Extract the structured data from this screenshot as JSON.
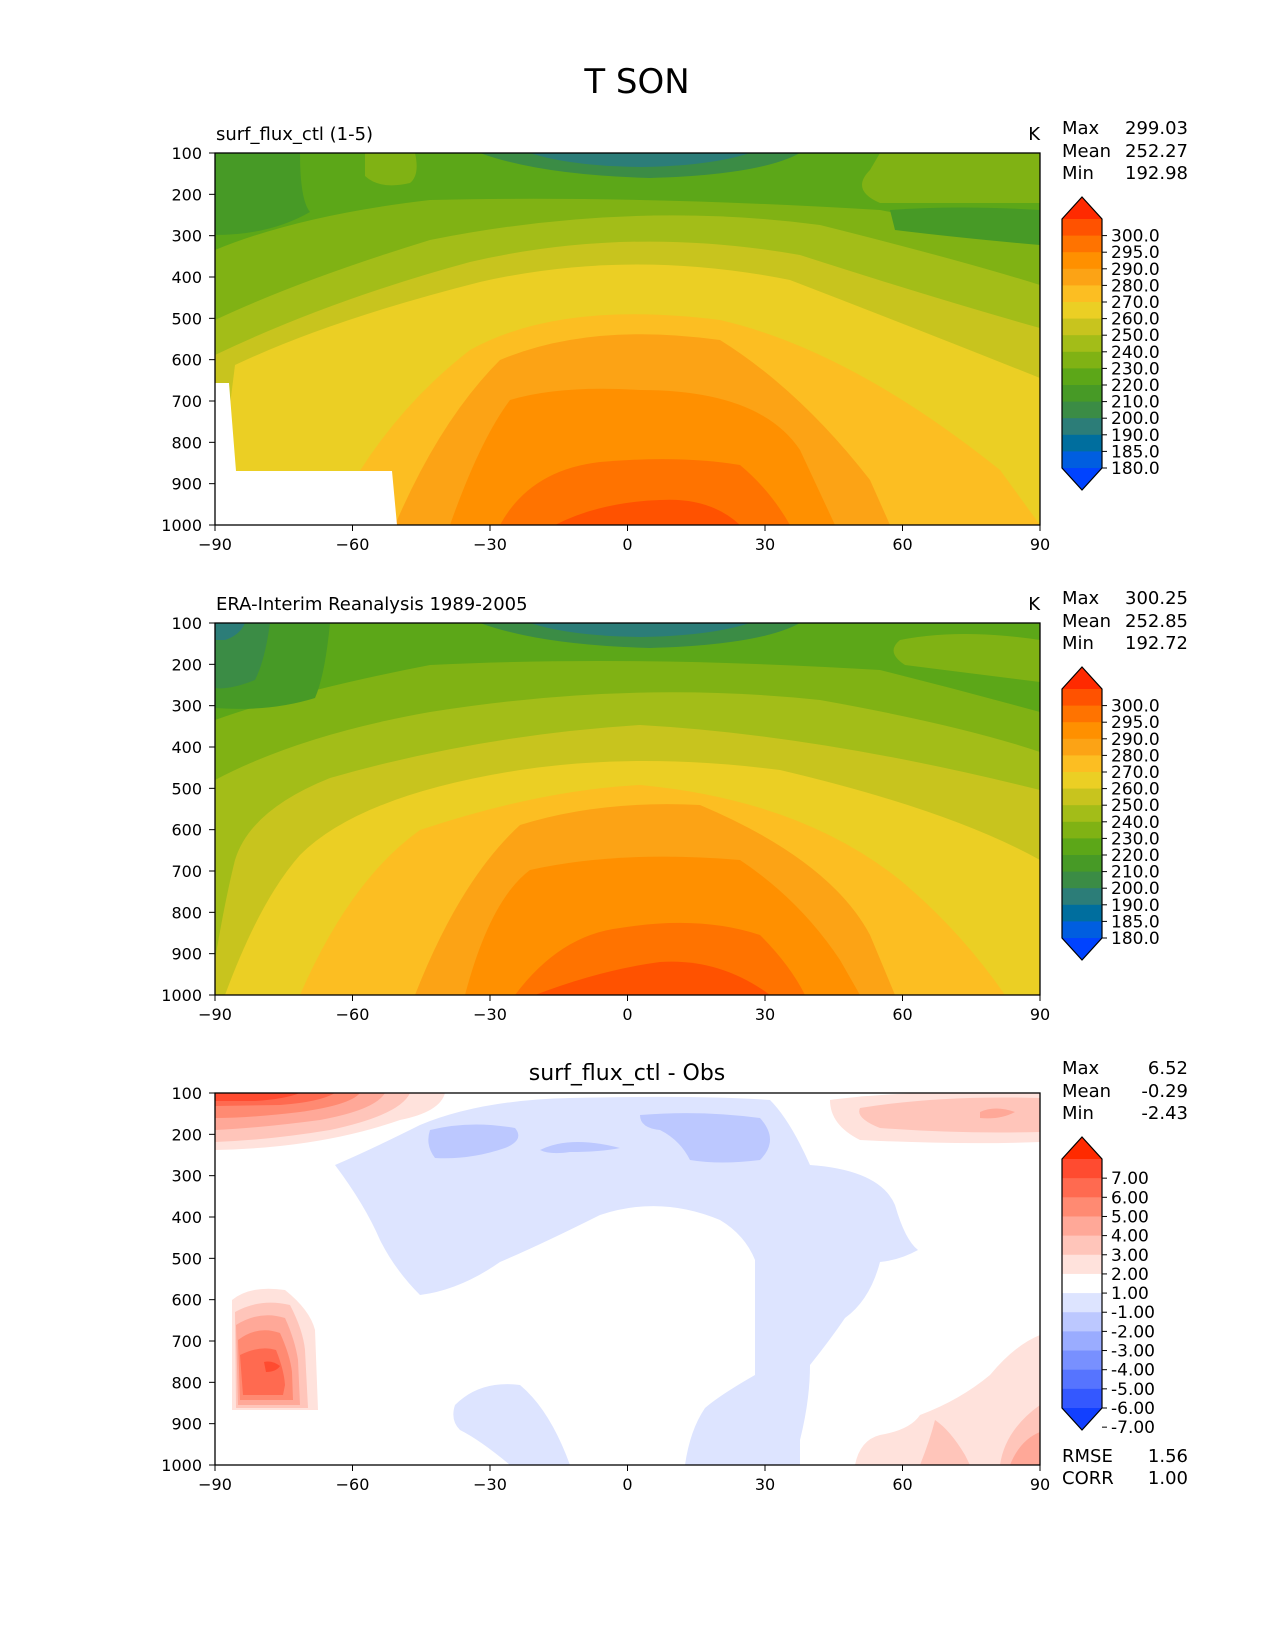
{
  "title": "T SON",
  "chart_data": [
    {
      "type": "heatmap",
      "title": "surf_flux_ctl (1-5)",
      "units": "K",
      "stats": {
        "max_label": "Max",
        "max": "299.03",
        "mean_label": "Mean",
        "mean": "252.27",
        "min_label": "Min",
        "min": "192.98"
      },
      "xlim": [
        -90,
        90
      ],
      "ylim": [
        1000,
        100
      ],
      "xticks": [
        "−90",
        "−60",
        "−30",
        "0",
        "30",
        "60",
        "90"
      ],
      "yticks": [
        "100",
        "200",
        "300",
        "400",
        "500",
        "600",
        "700",
        "800",
        "900",
        "1000"
      ],
      "colorbar": {
        "labels": [
          "300.0",
          "295.0",
          "290.0",
          "280.0",
          "270.0",
          "260.0",
          "250.0",
          "240.0",
          "230.0",
          "220.0",
          "210.0",
          "200.0",
          "190.0",
          "185.0",
          "180.0"
        ],
        "colors": [
          "#ff2a00",
          "#ff5200",
          "#ff7300",
          "#ff9000",
          "#fca315",
          "#fcbe22",
          "#ebcf24",
          "#c8c41e",
          "#a3bd18",
          "#80b214",
          "#5ca718",
          "#479a26",
          "#3b8c45",
          "#2c7d78",
          "#006e9e",
          "#005ee0",
          "#0043ff"
        ]
      }
    },
    {
      "type": "heatmap",
      "title": "ERA-Interim Reanalysis 1989-2005",
      "units": "K",
      "stats": {
        "max_label": "Max",
        "max": "300.25",
        "mean_label": "Mean",
        "mean": "252.85",
        "min_label": "Min",
        "min": "192.72"
      },
      "xlim": [
        -90,
        90
      ],
      "ylim": [
        1000,
        100
      ],
      "xticks": [
        "−90",
        "−60",
        "−30",
        "0",
        "30",
        "60",
        "90"
      ],
      "yticks": [
        "100",
        "200",
        "300",
        "400",
        "500",
        "600",
        "700",
        "800",
        "900",
        "1000"
      ],
      "colorbar": {
        "labels": [
          "300.0",
          "295.0",
          "290.0",
          "280.0",
          "270.0",
          "260.0",
          "250.0",
          "240.0",
          "230.0",
          "220.0",
          "210.0",
          "200.0",
          "190.0",
          "185.0",
          "180.0"
        ],
        "colors": [
          "#ff2a00",
          "#ff5200",
          "#ff7300",
          "#ff9000",
          "#fca315",
          "#fcbe22",
          "#ebcf24",
          "#c8c41e",
          "#a3bd18",
          "#80b214",
          "#5ca718",
          "#479a26",
          "#3b8c45",
          "#2c7d78",
          "#006e9e",
          "#005ee0",
          "#0043ff"
        ]
      }
    },
    {
      "type": "heatmap",
      "title": "surf_flux_ctl - Obs",
      "units": "",
      "stats": {
        "max_label": "Max",
        "max": "6.52",
        "mean_label": "Mean",
        "mean": "-0.29",
        "min_label": "Min",
        "min": "-2.43"
      },
      "extra_stats": {
        "rmse_label": "RMSE",
        "rmse": "1.56",
        "corr_label": "CORR",
        "corr": "1.00"
      },
      "xlim": [
        -90,
        90
      ],
      "ylim": [
        1000,
        100
      ],
      "xticks": [
        "−90",
        "−60",
        "−30",
        "0",
        "30",
        "60",
        "90"
      ],
      "yticks": [
        "100",
        "200",
        "300",
        "400",
        "500",
        "600",
        "700",
        "800",
        "900",
        "1000"
      ],
      "colorbar": {
        "labels": [
          "7.00",
          "6.00",
          "5.00",
          "4.00",
          "3.00",
          "2.00",
          "1.00",
          "-1.00",
          "-2.00",
          "-3.00",
          "-4.00",
          "-5.00",
          "-6.00",
          "-7.00"
        ],
        "colors": [
          "#ff2a00",
          "#ff4b30",
          "#ff6a50",
          "#ff8a72",
          "#ffa898",
          "#ffc5ba",
          "#ffe2dc",
          "#ffffff",
          "#dde4ff",
          "#bcc8ff",
          "#9aacff",
          "#7890ff",
          "#5674ff",
          "#3458ff",
          "#1240ff"
        ]
      }
    }
  ]
}
